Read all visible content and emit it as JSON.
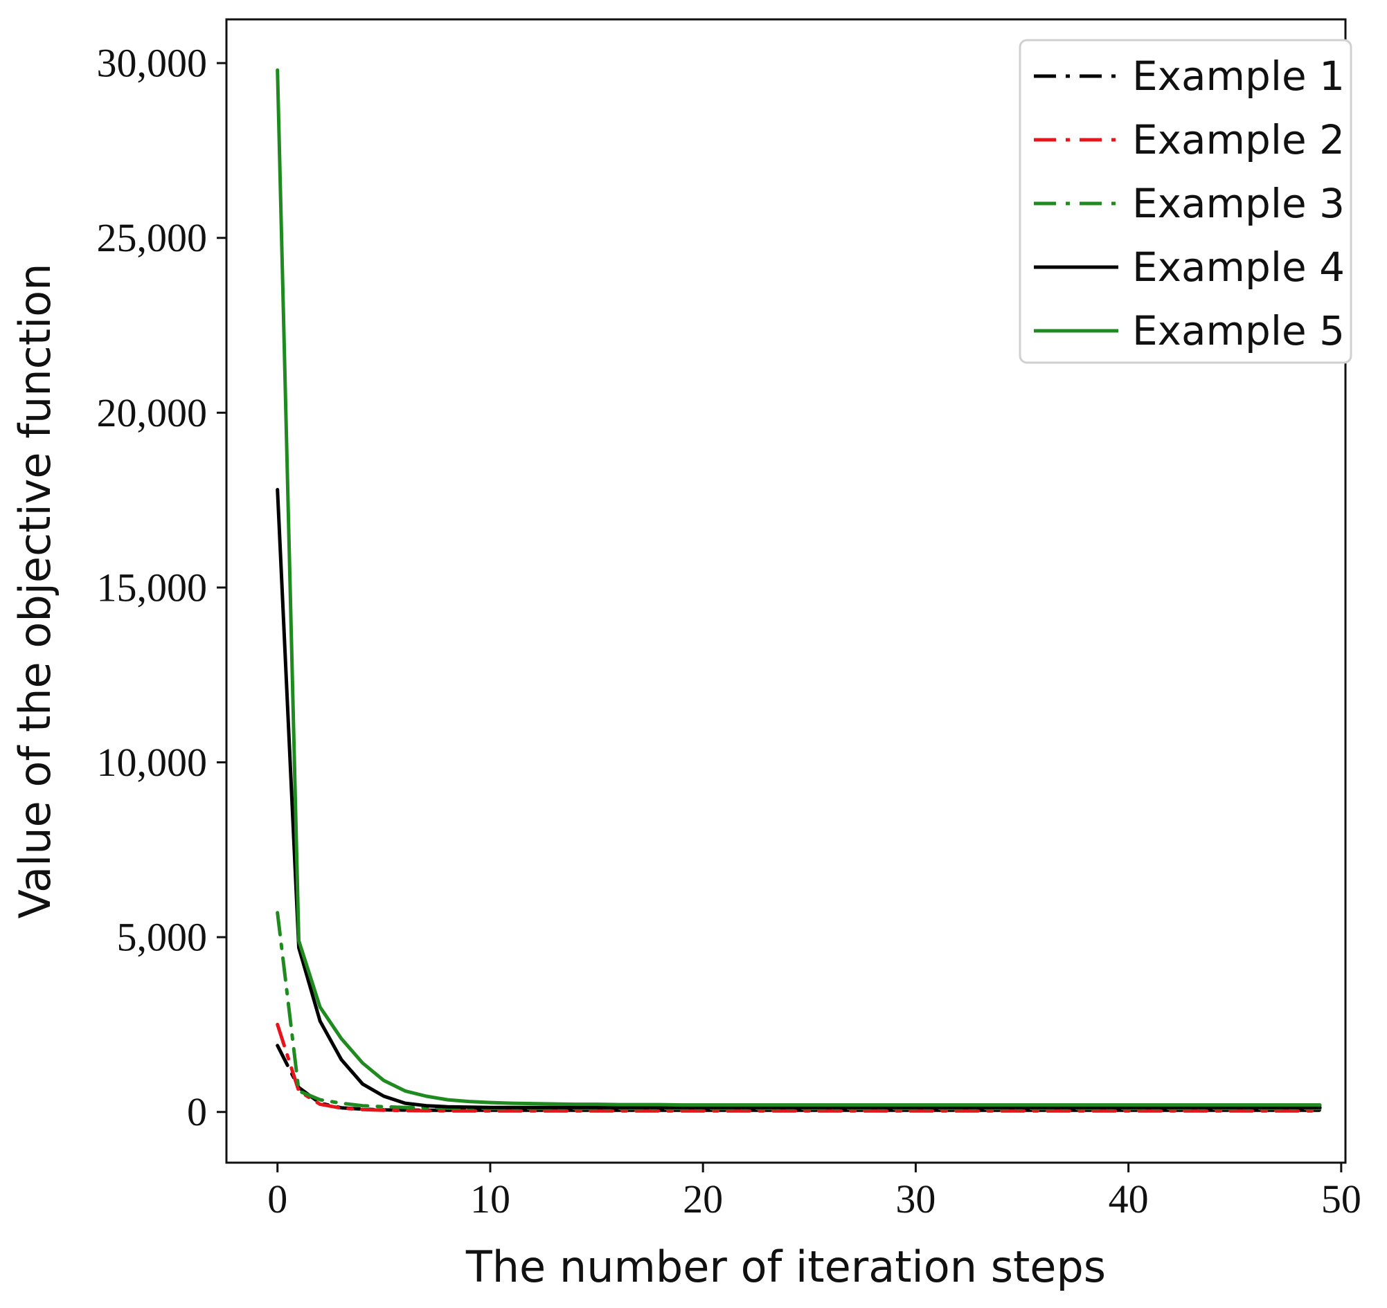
{
  "chart_data": {
    "type": "line",
    "title": "",
    "xlabel": "The number of iteration steps",
    "ylabel": "Value of the objective function",
    "xlim": [
      -2.4,
      50.2
    ],
    "ylim": [
      -1450,
      31250
    ],
    "xticks": [
      0,
      10,
      20,
      30,
      40,
      50
    ],
    "xtick_labels": [
      "0",
      "10",
      "20",
      "30",
      "40",
      "50"
    ],
    "yticks": [
      0,
      5000,
      10000,
      15000,
      20000,
      25000,
      30000
    ],
    "ytick_labels": [
      "0",
      "5,000",
      "10,000",
      "15,000",
      "20,000",
      "25,000",
      "30,000"
    ],
    "grid": false,
    "legend_position": "top-right",
    "x": [
      0,
      1,
      2,
      3,
      4,
      5,
      6,
      7,
      8,
      9,
      10,
      11,
      12,
      13,
      14,
      15,
      16,
      17,
      18,
      19,
      20,
      21,
      22,
      23,
      24,
      25,
      26,
      27,
      28,
      29,
      30,
      31,
      32,
      33,
      34,
      35,
      36,
      37,
      38,
      39,
      40,
      41,
      42,
      43,
      44,
      45,
      46,
      47,
      48,
      49
    ],
    "series": [
      {
        "name": "Example 1",
        "color": "#000000",
        "style": "dashdot",
        "values": [
          1900,
          700,
          250,
          120,
          80,
          60,
          55,
          50,
          50,
          50,
          50,
          50,
          50,
          50,
          50,
          50,
          50,
          50,
          50,
          50,
          50,
          50,
          50,
          50,
          50,
          50,
          50,
          50,
          50,
          50,
          50,
          50,
          50,
          50,
          50,
          50,
          50,
          50,
          50,
          50,
          50,
          50,
          50,
          50,
          50,
          50,
          50,
          50,
          50,
          50
        ]
      },
      {
        "name": "Example 2",
        "color": "#e8141c",
        "style": "dashdot",
        "values": [
          2500,
          600,
          220,
          110,
          70,
          50,
          40,
          35,
          30,
          30,
          30,
          30,
          30,
          30,
          30,
          30,
          30,
          30,
          30,
          30,
          30,
          30,
          30,
          30,
          30,
          30,
          30,
          30,
          30,
          30,
          30,
          30,
          30,
          30,
          30,
          30,
          30,
          30,
          30,
          30,
          30,
          30,
          30,
          30,
          30,
          30,
          30,
          30,
          30,
          30
        ]
      },
      {
        "name": "Example 3",
        "color": "#1f8a1f",
        "style": "dashdot",
        "values": [
          5700,
          600,
          350,
          250,
          180,
          150,
          130,
          120,
          110,
          110,
          100,
          100,
          100,
          100,
          100,
          100,
          100,
          100,
          100,
          100,
          100,
          100,
          100,
          100,
          100,
          100,
          100,
          100,
          100,
          100,
          100,
          100,
          100,
          100,
          100,
          100,
          100,
          100,
          100,
          100,
          100,
          100,
          100,
          100,
          100,
          100,
          100,
          100,
          100,
          100
        ]
      },
      {
        "name": "Example 4",
        "color": "#000000",
        "style": "solid",
        "values": [
          17800,
          4700,
          2600,
          1500,
          800,
          450,
          250,
          180,
          150,
          140,
          130,
          130,
          130,
          130,
          130,
          130,
          130,
          130,
          130,
          130,
          130,
          130,
          130,
          130,
          130,
          130,
          130,
          130,
          130,
          130,
          130,
          130,
          130,
          130,
          130,
          130,
          130,
          130,
          130,
          130,
          130,
          130,
          130,
          130,
          130,
          130,
          130,
          130,
          130,
          130
        ]
      },
      {
        "name": "Example 5",
        "color": "#1f8a1f",
        "style": "solid",
        "values": [
          29800,
          4900,
          3000,
          2100,
          1400,
          900,
          600,
          450,
          350,
          300,
          270,
          250,
          240,
          230,
          220,
          220,
          210,
          210,
          210,
          200,
          200,
          200,
          200,
          200,
          200,
          200,
          200,
          200,
          200,
          200,
          200,
          200,
          200,
          200,
          200,
          200,
          200,
          200,
          200,
          200,
          200,
          200,
          200,
          200,
          200,
          200,
          200,
          200,
          200,
          200
        ]
      }
    ]
  }
}
